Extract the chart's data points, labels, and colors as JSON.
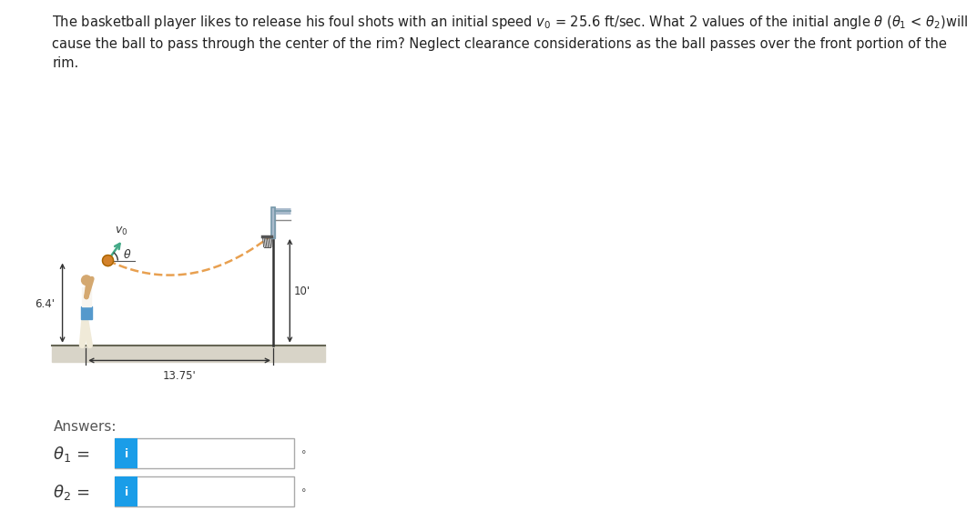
{
  "background_color": "#ffffff",
  "title_text": "The basketball player likes to release his foul shots with an initial speed $v_0$ = 25.6 ft/sec. What 2 values of the initial angle $\\theta$ ($\\theta_1$ < $\\theta_2$)will\ncause the ball to pass through the center of the rim? Neglect clearance considerations as the ball passes over the front portion of the\nrim.",
  "diagram": {
    "arc_color": "#e8a050",
    "ground_color": "#d4d0c8",
    "player_body_color": "#f5f0e8",
    "player_shorts_color": "#5599cc",
    "annotation_color": "#333333",
    "backboard_color": "#aabbcc",
    "pole_color": "#333333"
  },
  "answers": {
    "label": "Answers:",
    "theta1": "$\\theta_1$ =",
    "theta2": "$\\theta_2$ =",
    "box_blue": "#1a9de8",
    "box_border": "#aaaaaa",
    "degree": "°"
  }
}
